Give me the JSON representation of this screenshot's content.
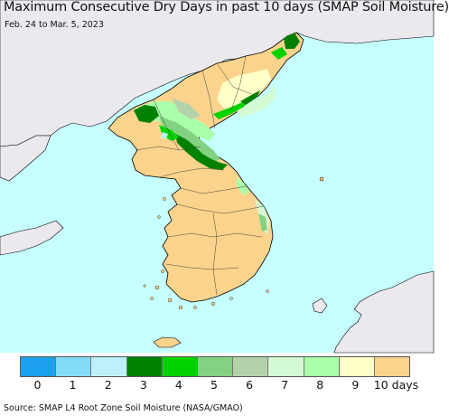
{
  "title": "Maximum Consecutive Dry Days in past 10 days (SMAP Soil Moisture)",
  "subtitle": "Feb. 24 to Mar. 5, 2023",
  "source": "Source: SMAP L4 Root Zone Soil Moisture (NASA/GMAO)",
  "colors": {
    "sea": "#c6ffff",
    "foreign_land": "#ece9ee",
    "dry_10": "#fbd38c",
    "dry_9": "#ffffc8"
  },
  "legend": [
    {
      "label": "0",
      "color": "#1ea0f0"
    },
    {
      "label": "1",
      "color": "#82dcf8"
    },
    {
      "label": "2",
      "color": "#bef0fc"
    },
    {
      "label": "3",
      "color": "#008200"
    },
    {
      "label": "4",
      "color": "#00d200"
    },
    {
      "label": "5",
      "color": "#82d282"
    },
    {
      "label": "6",
      "color": "#b4d2aa"
    },
    {
      "label": "7",
      "color": "#d4fad4"
    },
    {
      "label": "8",
      "color": "#aaffaa"
    },
    {
      "label": "9",
      "color": "#ffffc8"
    },
    {
      "label": "10 days",
      "color": "#fbd38c"
    }
  ]
}
